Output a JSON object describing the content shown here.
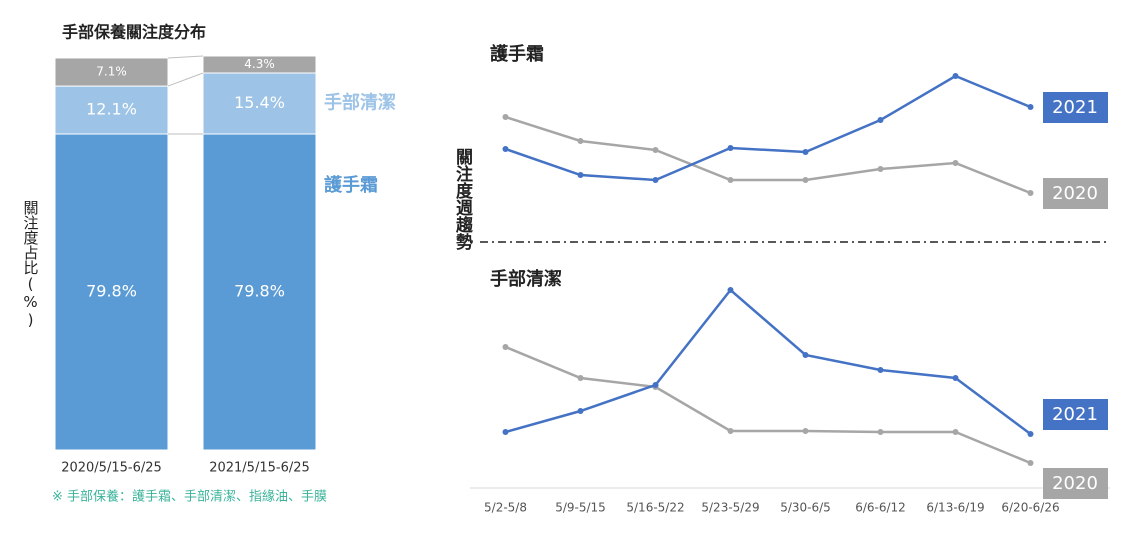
{
  "chart_data": [
    {
      "type": "stacked_bar",
      "title": "手部保養關注度分布",
      "y_label": "關注度占比(%)",
      "categories": [
        "2020/5/15-6/25",
        "2021/5/15-6/25"
      ],
      "series": [
        {
          "name": "護手霜",
          "color": "#5b9bd5",
          "values": [
            79.8,
            79.8
          ],
          "value_labels": [
            "79.8%",
            "79.8%"
          ]
        },
        {
          "name": "手部清潔",
          "color": "#9dc3e6",
          "values": [
            12.1,
            15.4
          ],
          "value_labels": [
            "12.1%",
            "15.4%"
          ]
        },
        {
          "color": "#a6a6a6",
          "values": [
            7.1,
            4.3
          ],
          "value_labels": [
            "7.1%",
            "4.3%"
          ]
        }
      ],
      "ylim": [
        0,
        100
      ],
      "note": "※ 手部保養：護手霜、手部清潔、指緣油、手膜"
    },
    {
      "type": "line",
      "title": "護手霜",
      "y_label": "關注度週趨勢",
      "series": [
        {
          "name": "2021",
          "color": "#4472c4",
          "values": [
            101,
            75,
            70,
            102,
            98,
            130,
            174,
            143
          ]
        },
        {
          "name": "2020",
          "color": "#a6a6a6",
          "values": [
            133,
            109,
            100,
            70,
            70,
            81,
            87,
            57
          ]
        }
      ],
      "ylim": [
        40,
        190
      ]
    },
    {
      "type": "line",
      "title": "手部清潔",
      "categories": [
        "5/2-5/8",
        "5/9-5/15",
        "5/16-5/22",
        "5/23-5/29",
        "5/30-6/5",
        "6/6-6/12",
        "6/13-6/19",
        "6/20-6/26"
      ],
      "series": [
        {
          "name": "2021",
          "color": "#4472c4",
          "values": [
            68,
            89,
            115,
            210,
            145,
            130,
            122,
            66
          ]
        },
        {
          "name": "2020",
          "color": "#a6a6a6",
          "values": [
            153,
            122,
            113,
            69,
            69,
            68,
            68,
            37
          ]
        }
      ],
      "ylim": [
        20,
        230
      ]
    }
  ]
}
